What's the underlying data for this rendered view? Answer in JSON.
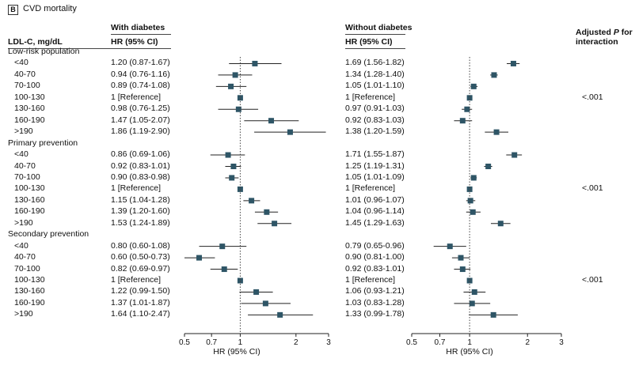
{
  "panel": {
    "letter": "B",
    "title": "CVD mortality"
  },
  "headers": {
    "ldl": "LDL-C, mg/dL",
    "with_diabetes": "With diabetes",
    "without_diabetes": "Without diabetes",
    "hr_ci": "HR (95% CI)",
    "adjusted_p_line1_pre": "Adjusted ",
    "adjusted_p_line1_p": "P",
    "adjusted_p_line1_post": " for",
    "adjusted_p_line2": "interaction"
  },
  "axis_label": "HR (95% CI)",
  "colors": {
    "marker": "#2e5566",
    "line": "#222222",
    "text": "#111111"
  },
  "chart_data": {
    "type": "forest",
    "scale": "log",
    "xlim": [
      0.5,
      3
    ],
    "ticks": [
      0.5,
      0.7,
      1,
      2,
      3
    ],
    "tick_labels": [
      "0.5",
      "0.7",
      "1",
      "2",
      "3"
    ],
    "reference_line": 1,
    "groups": [
      {
        "label": "Low-risk population",
        "p_interaction": "<.001",
        "rows": [
          {
            "ldl": "<40",
            "with": {
              "text": "1.20 (0.87-1.67)",
              "hr": 1.2,
              "lo": 0.87,
              "hi": 1.67
            },
            "without": {
              "text": "1.69 (1.56-1.82)",
              "hr": 1.69,
              "lo": 1.56,
              "hi": 1.82
            }
          },
          {
            "ldl": "40-70",
            "with": {
              "text": "0.94 (0.76-1.16)",
              "hr": 0.94,
              "lo": 0.76,
              "hi": 1.16
            },
            "without": {
              "text": "1.34 (1.28-1.40)",
              "hr": 1.34,
              "lo": 1.28,
              "hi": 1.4
            }
          },
          {
            "ldl": "70-100",
            "with": {
              "text": "0.89 (0.74-1.08)",
              "hr": 0.89,
              "lo": 0.74,
              "hi": 1.08
            },
            "without": {
              "text": "1.05 (1.01-1.10)",
              "hr": 1.05,
              "lo": 1.01,
              "hi": 1.1
            }
          },
          {
            "ldl": "100-130",
            "with": {
              "text": "1 [Reference]",
              "hr": 1.0,
              "lo": 1.0,
              "hi": 1.0
            },
            "without": {
              "text": "1 [Reference]",
              "hr": 1.0,
              "lo": 1.0,
              "hi": 1.0
            }
          },
          {
            "ldl": "130-160",
            "with": {
              "text": "0.98 (0.76-1.25)",
              "hr": 0.98,
              "lo": 0.76,
              "hi": 1.25
            },
            "without": {
              "text": "0.97 (0.91-1.03)",
              "hr": 0.97,
              "lo": 0.91,
              "hi": 1.03
            }
          },
          {
            "ldl": "160-190",
            "with": {
              "text": "1.47 (1.05-2.07)",
              "hr": 1.47,
              "lo": 1.05,
              "hi": 2.07
            },
            "without": {
              "text": "0.92 (0.83-1.03)",
              "hr": 0.92,
              "lo": 0.83,
              "hi": 1.03
            }
          },
          {
            "ldl": ">190",
            "with": {
              "text": "1.86 (1.19-2.90)",
              "hr": 1.86,
              "lo": 1.19,
              "hi": 2.9
            },
            "without": {
              "text": "1.38 (1.20-1.59)",
              "hr": 1.38,
              "lo": 1.2,
              "hi": 1.59
            }
          }
        ]
      },
      {
        "label": "Primary prevention",
        "p_interaction": "<.001",
        "rows": [
          {
            "ldl": "<40",
            "with": {
              "text": "0.86 (0.69-1.06)",
              "hr": 0.86,
              "lo": 0.69,
              "hi": 1.06
            },
            "without": {
              "text": "1.71 (1.55-1.87)",
              "hr": 1.71,
              "lo": 1.55,
              "hi": 1.87
            }
          },
          {
            "ldl": "40-70",
            "with": {
              "text": "0.92 (0.83-1.01)",
              "hr": 0.92,
              "lo": 0.83,
              "hi": 1.01
            },
            "without": {
              "text": "1.25 (1.19-1.31)",
              "hr": 1.25,
              "lo": 1.19,
              "hi": 1.31
            }
          },
          {
            "ldl": "70-100",
            "with": {
              "text": "0.90 (0.83-0.98)",
              "hr": 0.9,
              "lo": 0.83,
              "hi": 0.98
            },
            "without": {
              "text": "1.05 (1.01-1.09)",
              "hr": 1.05,
              "lo": 1.01,
              "hi": 1.09
            }
          },
          {
            "ldl": "100-130",
            "with": {
              "text": "1 [Reference]",
              "hr": 1.0,
              "lo": 1.0,
              "hi": 1.0
            },
            "without": {
              "text": "1 [Reference]",
              "hr": 1.0,
              "lo": 1.0,
              "hi": 1.0
            }
          },
          {
            "ldl": "130-160",
            "with": {
              "text": "1.15 (1.04-1.28)",
              "hr": 1.15,
              "lo": 1.04,
              "hi": 1.28
            },
            "without": {
              "text": "1.01 (0.96-1.07)",
              "hr": 1.01,
              "lo": 0.96,
              "hi": 1.07
            }
          },
          {
            "ldl": "160-190",
            "with": {
              "text": "1.39 (1.20-1.60)",
              "hr": 1.39,
              "lo": 1.2,
              "hi": 1.6
            },
            "without": {
              "text": "1.04 (0.96-1.14)",
              "hr": 1.04,
              "lo": 0.96,
              "hi": 1.14
            }
          },
          {
            "ldl": ">190",
            "with": {
              "text": "1.53 (1.24-1.89)",
              "hr": 1.53,
              "lo": 1.24,
              "hi": 1.89
            },
            "without": {
              "text": "1.45 (1.29-1.63)",
              "hr": 1.45,
              "lo": 1.29,
              "hi": 1.63
            }
          }
        ]
      },
      {
        "label": "Secondary prevention",
        "p_interaction": "<.001",
        "rows": [
          {
            "ldl": "<40",
            "with": {
              "text": "0.80 (0.60-1.08)",
              "hr": 0.8,
              "lo": 0.6,
              "hi": 1.08
            },
            "without": {
              "text": "0.79 (0.65-0.96)",
              "hr": 0.79,
              "lo": 0.65,
              "hi": 0.96
            }
          },
          {
            "ldl": "40-70",
            "with": {
              "text": "0.60 (0.50-0.73)",
              "hr": 0.6,
              "lo": 0.5,
              "hi": 0.73
            },
            "without": {
              "text": "0.90 (0.81-1.00)",
              "hr": 0.9,
              "lo": 0.81,
              "hi": 1.0
            }
          },
          {
            "ldl": "70-100",
            "with": {
              "text": "0.82 (0.69-0.97)",
              "hr": 0.82,
              "lo": 0.69,
              "hi": 0.97
            },
            "without": {
              "text": "0.92 (0.83-1.01)",
              "hr": 0.92,
              "lo": 0.83,
              "hi": 1.01
            }
          },
          {
            "ldl": "100-130",
            "with": {
              "text": "1 [Reference]",
              "hr": 1.0,
              "lo": 1.0,
              "hi": 1.0
            },
            "without": {
              "text": "1 [Reference]",
              "hr": 1.0,
              "lo": 1.0,
              "hi": 1.0
            }
          },
          {
            "ldl": "130-160",
            "with": {
              "text": "1.22 (0.99-1.50)",
              "hr": 1.22,
              "lo": 0.99,
              "hi": 1.5
            },
            "without": {
              "text": "1.06 (0.93-1.21)",
              "hr": 1.06,
              "lo": 0.93,
              "hi": 1.21
            }
          },
          {
            "ldl": "160-190",
            "with": {
              "text": "1.37 (1.01-1.87)",
              "hr": 1.37,
              "lo": 1.01,
              "hi": 1.87
            },
            "without": {
              "text": "1.03 (0.83-1.28)",
              "hr": 1.03,
              "lo": 0.83,
              "hi": 1.28
            }
          },
          {
            "ldl": ">190",
            "with": {
              "text": "1.64 (1.10-2.47)",
              "hr": 1.64,
              "lo": 1.1,
              "hi": 2.47
            },
            "without": {
              "text": "1.33 (0.99-1.78)",
              "hr": 1.33,
              "lo": 0.99,
              "hi": 1.78
            }
          }
        ]
      }
    ]
  }
}
